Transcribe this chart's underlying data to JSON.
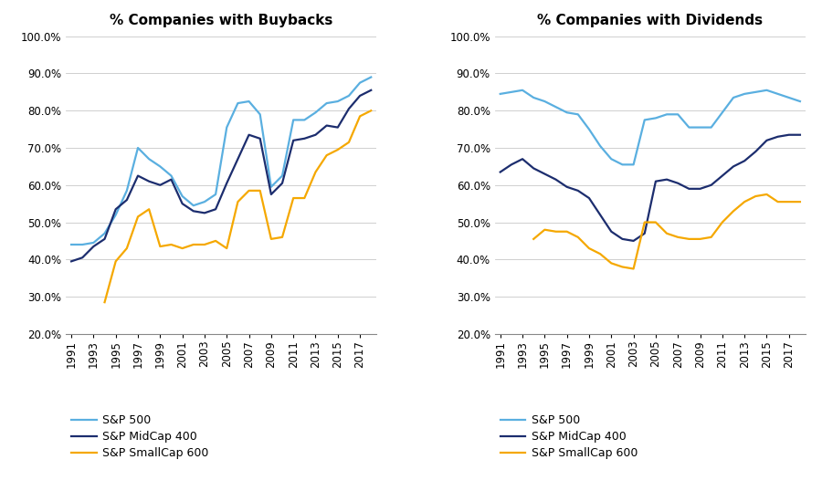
{
  "years": [
    1991,
    1992,
    1993,
    1994,
    1995,
    1996,
    1997,
    1998,
    1999,
    2000,
    2001,
    2002,
    2003,
    2004,
    2005,
    2006,
    2007,
    2008,
    2009,
    2010,
    2011,
    2012,
    2013,
    2014,
    2015,
    2016,
    2017,
    2018
  ],
  "buybacks_sp500": [
    0.44,
    0.44,
    0.445,
    0.47,
    0.52,
    0.585,
    0.7,
    0.67,
    0.65,
    0.625,
    0.57,
    0.545,
    0.555,
    0.575,
    0.755,
    0.82,
    0.825,
    0.79,
    0.595,
    0.625,
    0.775,
    0.775,
    0.795,
    0.82,
    0.825,
    0.84,
    0.875,
    0.89
  ],
  "buybacks_midcap": [
    0.395,
    0.405,
    0.435,
    0.455,
    0.535,
    0.56,
    0.625,
    0.61,
    0.6,
    0.615,
    0.55,
    0.53,
    0.525,
    0.535,
    0.605,
    0.67,
    0.735,
    0.725,
    0.575,
    0.605,
    0.72,
    0.725,
    0.735,
    0.76,
    0.755,
    0.805,
    0.84,
    0.855
  ],
  "buybacks_smallcap": [
    null,
    null,
    null,
    0.285,
    0.395,
    0.43,
    0.515,
    0.535,
    0.435,
    0.44,
    0.43,
    0.44,
    0.44,
    0.45,
    0.43,
    0.555,
    0.585,
    0.585,
    0.455,
    0.46,
    0.565,
    0.565,
    0.635,
    0.68,
    0.695,
    0.715,
    0.785,
    0.8
  ],
  "dividends_sp500": [
    0.845,
    0.85,
    0.855,
    0.835,
    0.825,
    0.81,
    0.795,
    0.79,
    0.75,
    0.705,
    0.67,
    0.655,
    0.655,
    0.775,
    0.78,
    0.79,
    0.79,
    0.755,
    0.755,
    0.755,
    0.795,
    0.835,
    0.845,
    0.85,
    0.855,
    0.845,
    0.835,
    0.825
  ],
  "dividends_midcap": [
    0.635,
    0.655,
    0.67,
    0.645,
    0.63,
    0.615,
    0.595,
    0.585,
    0.565,
    0.52,
    0.475,
    0.455,
    0.45,
    0.47,
    0.61,
    0.615,
    0.605,
    0.59,
    0.59,
    0.6,
    0.625,
    0.65,
    0.665,
    0.69,
    0.72,
    0.73,
    0.735,
    0.735
  ],
  "dividends_smallcap": [
    null,
    null,
    null,
    0.455,
    0.48,
    0.475,
    0.475,
    0.46,
    0.43,
    0.415,
    0.39,
    0.38,
    0.375,
    0.5,
    0.5,
    0.47,
    0.46,
    0.455,
    0.455,
    0.46,
    0.5,
    0.53,
    0.555,
    0.57,
    0.575,
    0.555,
    0.555,
    0.555
  ],
  "color_sp500": "#5aafe0",
  "color_midcap": "#1c2d6e",
  "color_smallcap": "#f5a800",
  "title_buybacks": "% Companies with Buybacks",
  "title_dividends": "% Companies with Dividends",
  "ylim": [
    0.2,
    1.005
  ],
  "yticks": [
    0.2,
    0.3,
    0.4,
    0.5,
    0.6,
    0.7,
    0.8,
    0.9,
    1.0
  ],
  "legend_labels": [
    "S&P 500",
    "S&P MidCap 400",
    "S&P SmallCap 600"
  ],
  "background_color": "#ffffff",
  "grid_color": "#c8c8c8",
  "tick_label_fontsize": 8.5,
  "title_fontsize": 11,
  "legend_fontsize": 9,
  "line_width": 1.6
}
